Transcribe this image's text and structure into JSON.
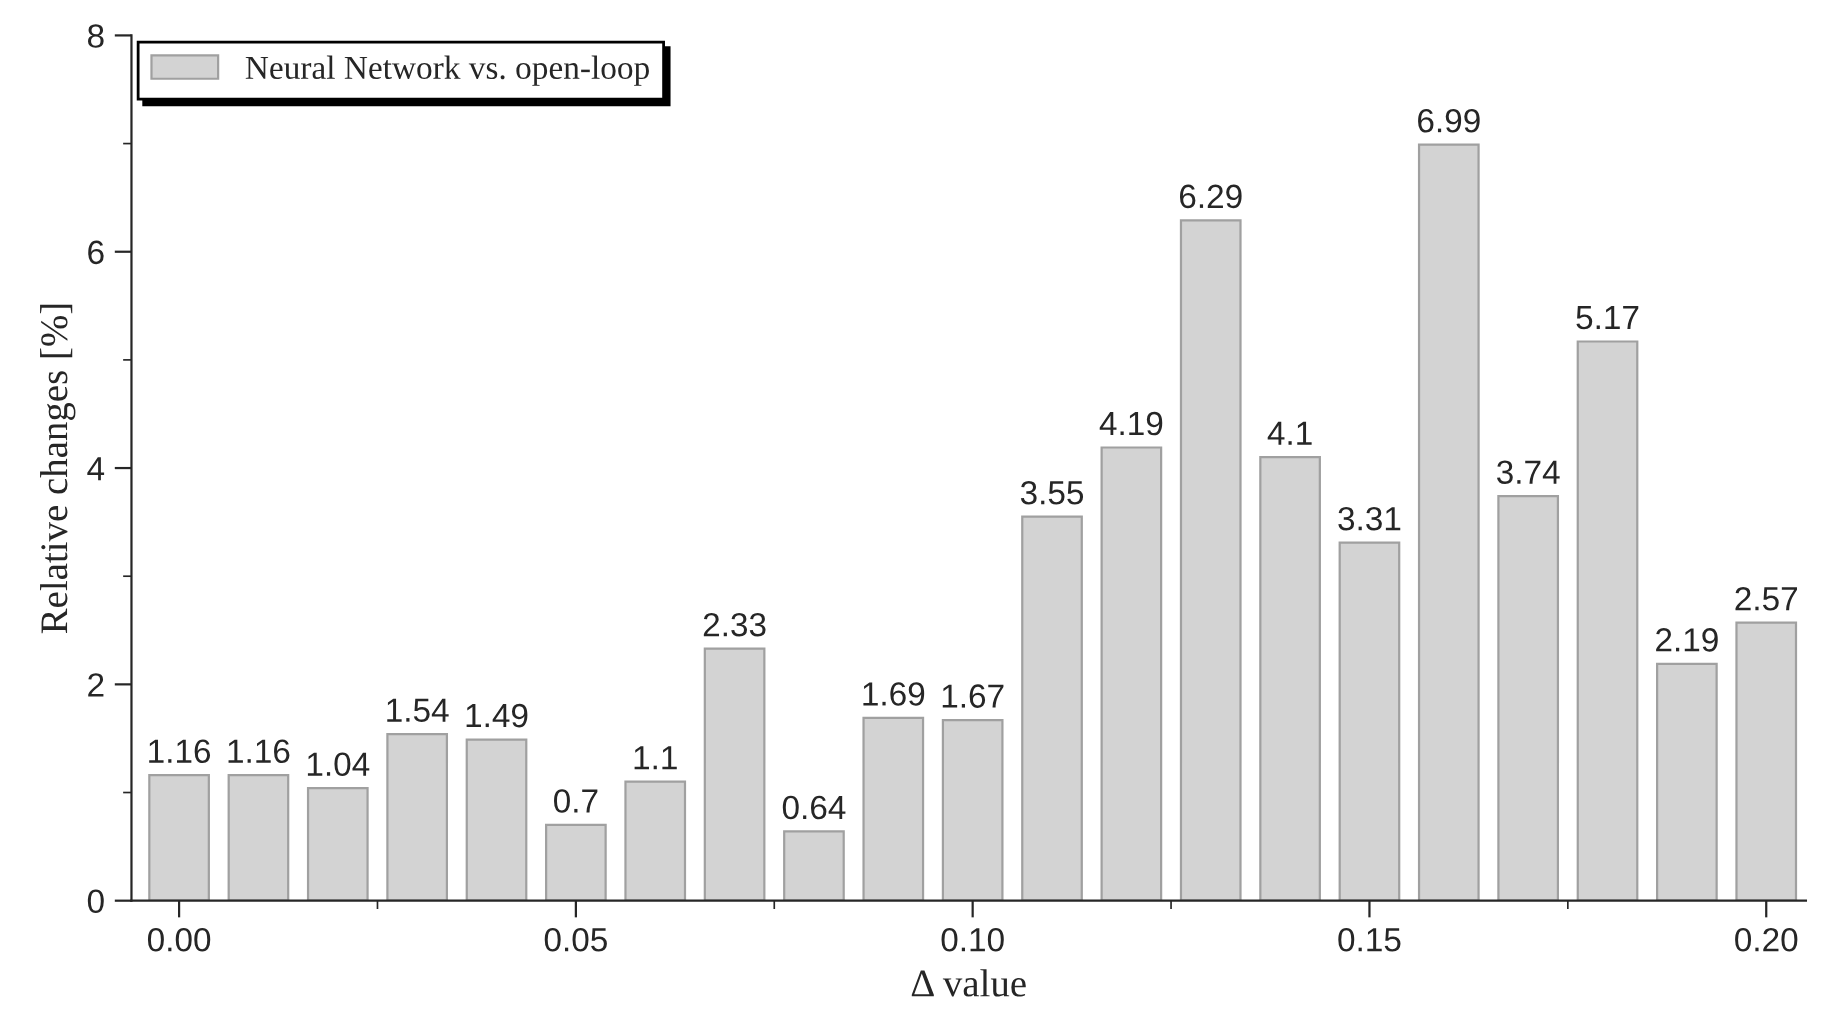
{
  "chart_data": {
    "type": "bar",
    "xlabel": "Δ value",
    "ylabel": "Relative changes [%]",
    "x": [
      0.0,
      0.01,
      0.02,
      0.03,
      0.04,
      0.05,
      0.06,
      0.07,
      0.08,
      0.09,
      0.1,
      0.11,
      0.12,
      0.13,
      0.14,
      0.15,
      0.16,
      0.17,
      0.18,
      0.19,
      0.2
    ],
    "series": [
      {
        "name": "Neural Network vs. open-loop",
        "color": "#d3d3d3",
        "values": [
          1.16,
          1.16,
          1.04,
          1.54,
          1.49,
          0.7,
          1.1,
          2.33,
          0.64,
          1.69,
          1.67,
          3.55,
          4.19,
          6.29,
          4.1,
          3.31,
          6.99,
          3.74,
          5.17,
          2.19,
          2.57
        ]
      }
    ],
    "xlim": [
      -0.006,
      0.205
    ],
    "xticks": [
      {
        "value": 0.0,
        "label": "0.00"
      },
      {
        "value": 0.05,
        "label": "0.05"
      },
      {
        "value": 0.1,
        "label": "0.10"
      },
      {
        "value": 0.15,
        "label": "0.15"
      },
      {
        "value": 0.2,
        "label": "0.20"
      }
    ],
    "ylim": [
      0,
      8
    ],
    "yticks": [
      0,
      2,
      4,
      6,
      8
    ],
    "data_labels": true,
    "legend": "top left",
    "grid": false
  }
}
